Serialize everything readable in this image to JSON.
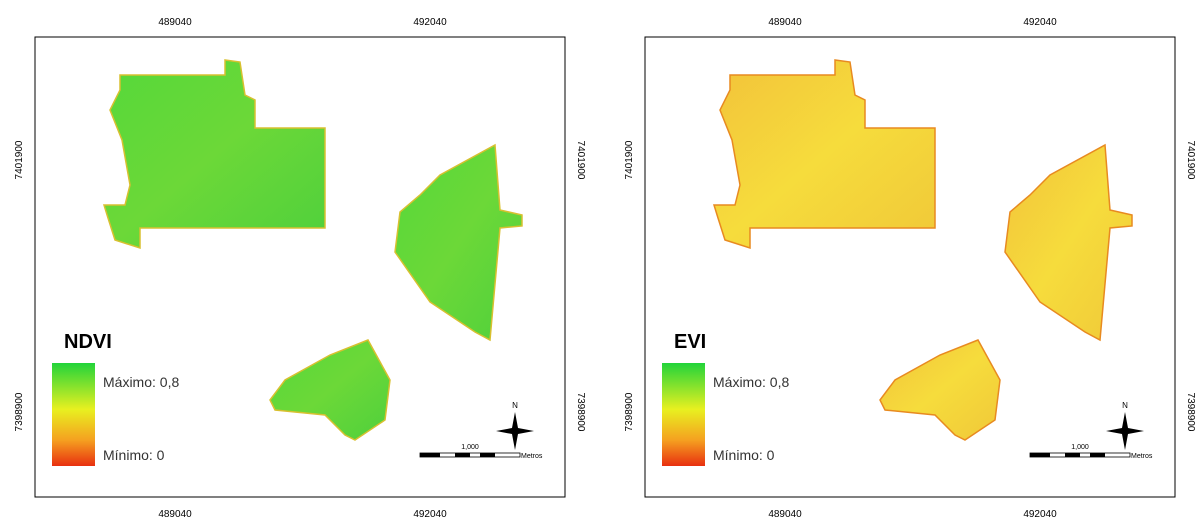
{
  "panels": [
    {
      "title": "NDVI",
      "legend_max": "Máximo: 0,8",
      "legend_min": "Mínimo: 0",
      "x_labels": [
        "489040",
        "492040"
      ],
      "y_labels": [
        "7401900",
        "7398900"
      ],
      "north": "N",
      "scale_label": "1,000",
      "scale_unit": "Metros"
    },
    {
      "title": "EVI",
      "legend_max": "Máximo: 0,8",
      "legend_min": "Mínimo: 0",
      "x_labels": [
        "489040",
        "492040"
      ],
      "y_labels": [
        "7401900",
        "7398900"
      ],
      "north": "N",
      "scale_label": "1,000",
      "scale_unit": "Metros"
    }
  ]
}
